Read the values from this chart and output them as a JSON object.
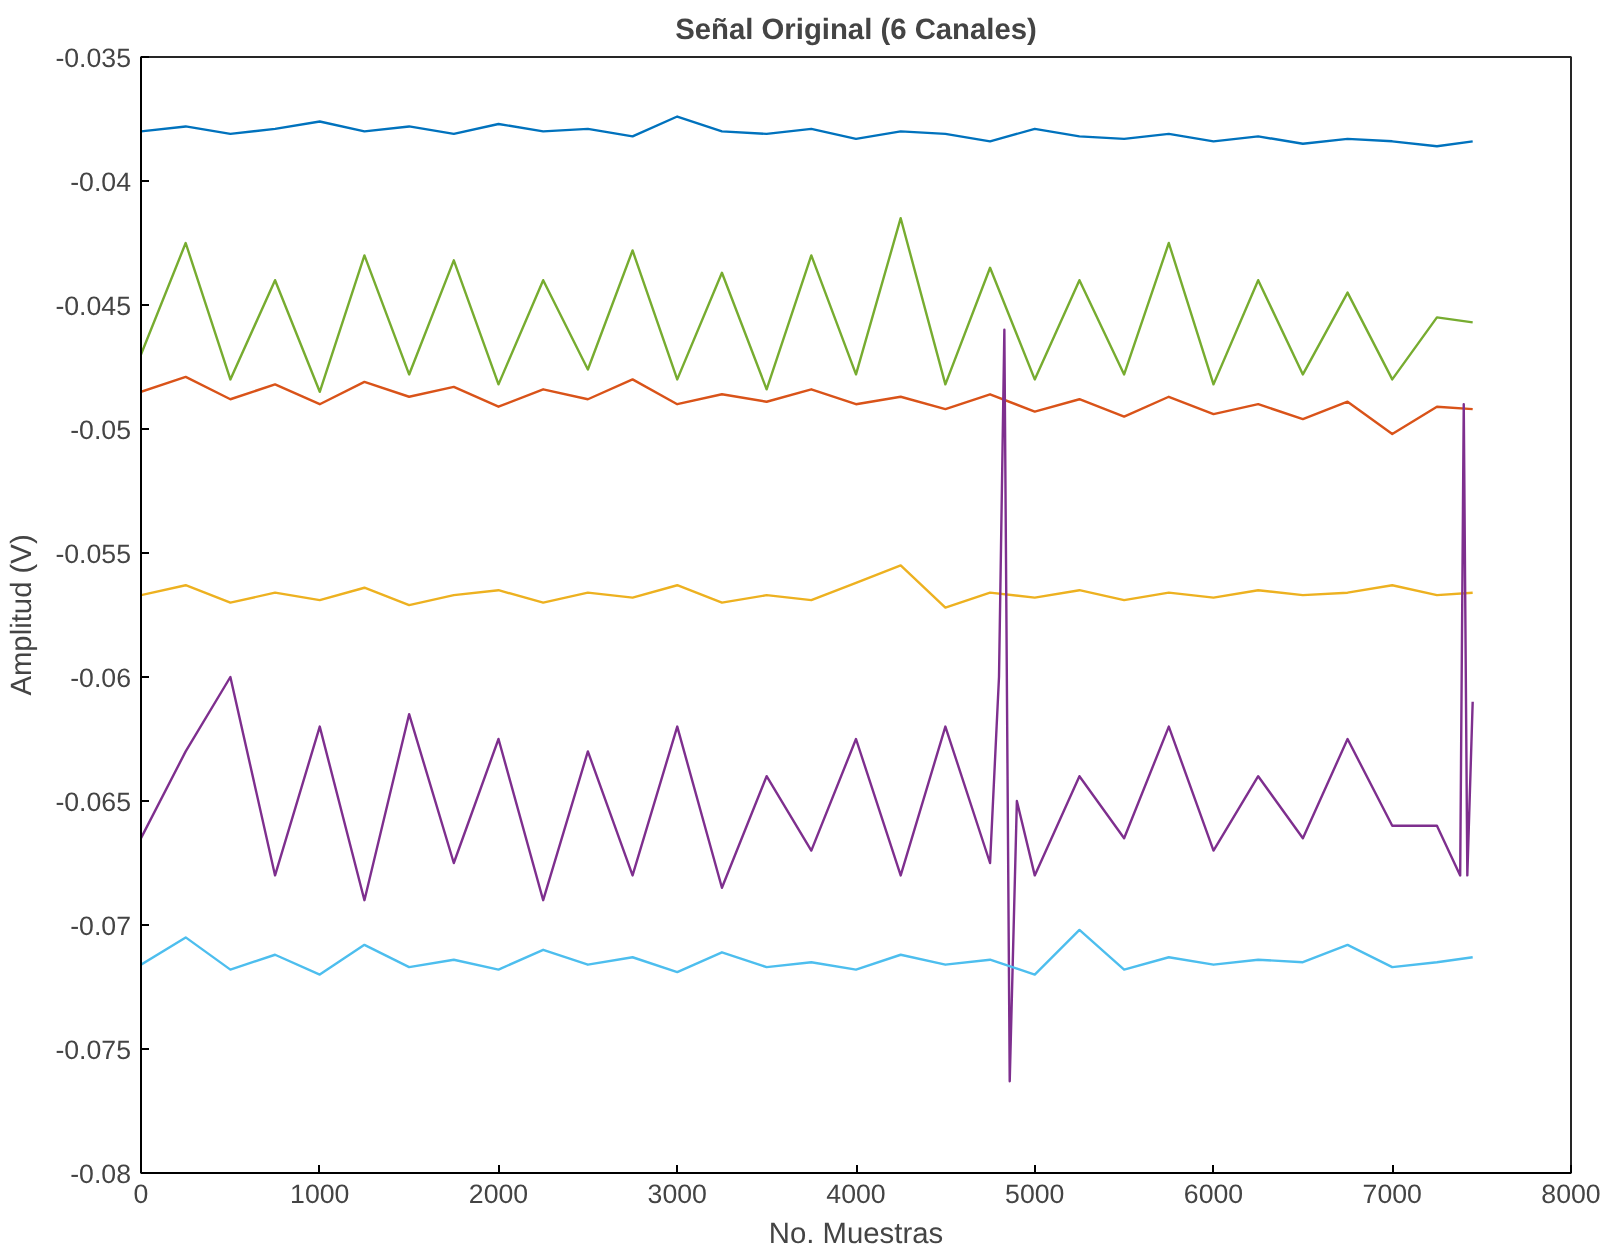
{
  "chart_data": {
    "type": "line",
    "title": "Señal Original (6 Canales)",
    "xlabel": "No. Muestras",
    "ylabel": "Amplitud (V)",
    "x": [
      0,
      250,
      500,
      750,
      1000,
      1250,
      1500,
      1750,
      2000,
      2250,
      2500,
      2750,
      3000,
      3250,
      3500,
      3750,
      4000,
      4250,
      4500,
      4750,
      5000,
      5250,
      5500,
      5750,
      6000,
      6250,
      6500,
      6750,
      7000,
      7250,
      7450
    ],
    "series": [
      {
        "color": "#0072bd",
        "values": [
          -0.038,
          -0.0378,
          -0.0381,
          -0.0379,
          -0.0376,
          -0.038,
          -0.0378,
          -0.0381,
          -0.0377,
          -0.038,
          -0.0379,
          -0.0382,
          -0.0374,
          -0.038,
          -0.0381,
          -0.0379,
          -0.0383,
          -0.038,
          -0.0381,
          -0.0384,
          -0.0379,
          -0.0382,
          -0.0383,
          -0.0381,
          -0.0384,
          -0.0382,
          -0.0385,
          -0.0383,
          -0.0384,
          -0.0386,
          -0.0384
        ]
      },
      {
        "color": "#d95319",
        "values": [
          -0.0485,
          -0.0479,
          -0.0488,
          -0.0482,
          -0.049,
          -0.0481,
          -0.0487,
          -0.0483,
          -0.0491,
          -0.0484,
          -0.0488,
          -0.048,
          -0.049,
          -0.0486,
          -0.0489,
          -0.0484,
          -0.049,
          -0.0487,
          -0.0492,
          -0.0486,
          -0.0493,
          -0.0488,
          -0.0495,
          -0.0487,
          -0.0494,
          -0.049,
          -0.0496,
          -0.0489,
          -0.0502,
          -0.0491,
          -0.0492
        ]
      },
      {
        "color": "#edb120",
        "values": [
          -0.0567,
          -0.0563,
          -0.057,
          -0.0566,
          -0.0569,
          -0.0564,
          -0.0571,
          -0.0567,
          -0.0565,
          -0.057,
          -0.0566,
          -0.0568,
          -0.0563,
          -0.057,
          -0.0567,
          -0.0569,
          -0.0562,
          -0.0555,
          -0.0572,
          -0.0566,
          -0.0568,
          -0.0565,
          -0.0569,
          -0.0566,
          -0.0568,
          -0.0565,
          -0.0567,
          -0.0566,
          -0.0563,
          -0.0567,
          -0.0566
        ]
      },
      {
        "color": "#7e2f8e",
        "x": [
          0,
          250,
          500,
          750,
          1000,
          1250,
          1500,
          1750,
          2000,
          2250,
          2500,
          2750,
          3000,
          3250,
          3500,
          3750,
          4000,
          4250,
          4500,
          4750,
          4800,
          4830,
          4860,
          4900,
          5000,
          5250,
          5500,
          5750,
          6000,
          6250,
          6500,
          6750,
          7000,
          7250,
          7380,
          7400,
          7420,
          7450
        ],
        "values": [
          -0.0665,
          -0.063,
          -0.06,
          -0.068,
          -0.062,
          -0.069,
          -0.0615,
          -0.0675,
          -0.0625,
          -0.069,
          -0.063,
          -0.068,
          -0.062,
          -0.0685,
          -0.064,
          -0.067,
          -0.0625,
          -0.068,
          -0.062,
          -0.0675,
          -0.06,
          -0.046,
          -0.0763,
          -0.065,
          -0.068,
          -0.064,
          -0.0665,
          -0.062,
          -0.067,
          -0.064,
          -0.0665,
          -0.0625,
          -0.066,
          -0.066,
          -0.068,
          -0.049,
          -0.068,
          -0.061
        ]
      },
      {
        "color": "#77ac30",
        "values": [
          -0.047,
          -0.0425,
          -0.048,
          -0.044,
          -0.0485,
          -0.043,
          -0.0478,
          -0.0432,
          -0.0482,
          -0.044,
          -0.0476,
          -0.0428,
          -0.048,
          -0.0437,
          -0.0484,
          -0.043,
          -0.0478,
          -0.0415,
          -0.0482,
          -0.0435,
          -0.048,
          -0.044,
          -0.0478,
          -0.0425,
          -0.0482,
          -0.044,
          -0.0478,
          -0.0445,
          -0.048,
          -0.0455,
          -0.0457
        ]
      },
      {
        "color": "#4dbeee",
        "values": [
          -0.0716,
          -0.0705,
          -0.0718,
          -0.0712,
          -0.072,
          -0.0708,
          -0.0717,
          -0.0714,
          -0.0718,
          -0.071,
          -0.0716,
          -0.0713,
          -0.0719,
          -0.0711,
          -0.0717,
          -0.0715,
          -0.0718,
          -0.0712,
          -0.0716,
          -0.0714,
          -0.072,
          -0.0702,
          -0.0718,
          -0.0713,
          -0.0716,
          -0.0714,
          -0.0715,
          -0.0708,
          -0.0717,
          -0.0715,
          -0.0713
        ]
      }
    ],
    "xlim": [
      0,
      8000
    ],
    "xticks": [
      0,
      1000,
      2000,
      3000,
      4000,
      5000,
      6000,
      7000,
      8000
    ],
    "ylim": [
      -0.08,
      -0.035
    ],
    "yticks": [
      -0.08,
      -0.075,
      -0.07,
      -0.065,
      -0.06,
      -0.055,
      -0.05,
      -0.045,
      -0.04,
      -0.035
    ],
    "grid": false,
    "line_style": "solid",
    "marker": "none"
  }
}
